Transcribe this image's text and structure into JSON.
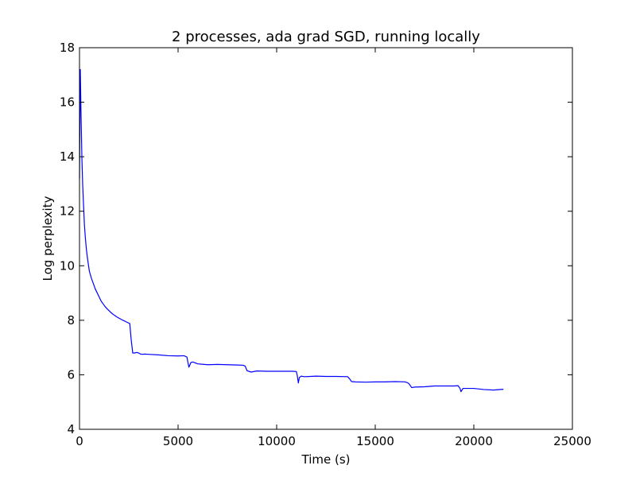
{
  "chart_data": {
    "type": "line",
    "title": "2 processes, ada grad SGD, running locally",
    "xlabel": "Time (s)",
    "ylabel": "Log perplexity",
    "xlim": [
      0,
      25000
    ],
    "ylim": [
      4,
      18
    ],
    "x_ticks": [
      0,
      5000,
      10000,
      15000,
      20000,
      25000
    ],
    "y_ticks": [
      4,
      6,
      8,
      10,
      12,
      14,
      16,
      18
    ],
    "grid": false,
    "line_color": "#0000ff",
    "series": [
      {
        "x": [
          0,
          40,
          80,
          120,
          160,
          200,
          250,
          300,
          350,
          400,
          500,
          600,
          700,
          800,
          900,
          1000,
          1100,
          1200,
          1300,
          1400,
          1500,
          1600,
          1700,
          1800,
          1900,
          2000,
          2100,
          2200,
          2300,
          2400,
          2550,
          2620,
          2700,
          2800,
          2900,
          3000,
          3100,
          3200,
          3300,
          3500,
          4000,
          4500,
          5000,
          5300,
          5450,
          5500,
          5550,
          5650,
          5750,
          6000,
          6500,
          7000,
          7500,
          8000,
          8300,
          8400,
          8500,
          8700,
          9000,
          9500,
          10000,
          10500,
          10800,
          11000,
          11050,
          11100,
          11150,
          11250,
          11400,
          11700,
          12000,
          12500,
          13000,
          13600,
          13700,
          13800,
          14000,
          14500,
          15000,
          15500,
          16000,
          16500,
          16600,
          16700,
          16800,
          16850,
          17000,
          17500,
          18000,
          18500,
          19000,
          19200,
          19300,
          19350,
          19450,
          19700,
          20000,
          20500,
          21000,
          21500
        ],
        "y": [
          13.2,
          17.2,
          15.5,
          14.0,
          13.0,
          12.3,
          11.5,
          11.0,
          10.6,
          10.3,
          9.8,
          9.55,
          9.35,
          9.15,
          9.0,
          8.85,
          8.7,
          8.6,
          8.5,
          8.42,
          8.35,
          8.28,
          8.22,
          8.17,
          8.12,
          8.08,
          8.04,
          8.0,
          7.97,
          7.93,
          7.88,
          7.3,
          6.8,
          6.8,
          6.82,
          6.8,
          6.76,
          6.75,
          6.76,
          6.75,
          6.73,
          6.7,
          6.69,
          6.7,
          6.65,
          6.45,
          6.28,
          6.45,
          6.47,
          6.4,
          6.37,
          6.38,
          6.37,
          6.36,
          6.35,
          6.32,
          6.15,
          6.1,
          6.14,
          6.13,
          6.13,
          6.13,
          6.13,
          6.12,
          5.95,
          5.7,
          5.9,
          5.95,
          5.93,
          5.94,
          5.95,
          5.94,
          5.94,
          5.93,
          5.85,
          5.75,
          5.74,
          5.73,
          5.74,
          5.74,
          5.75,
          5.74,
          5.72,
          5.68,
          5.58,
          5.53,
          5.55,
          5.56,
          5.59,
          5.59,
          5.59,
          5.6,
          5.5,
          5.38,
          5.5,
          5.5,
          5.5,
          5.46,
          5.44,
          5.47
        ]
      }
    ]
  }
}
